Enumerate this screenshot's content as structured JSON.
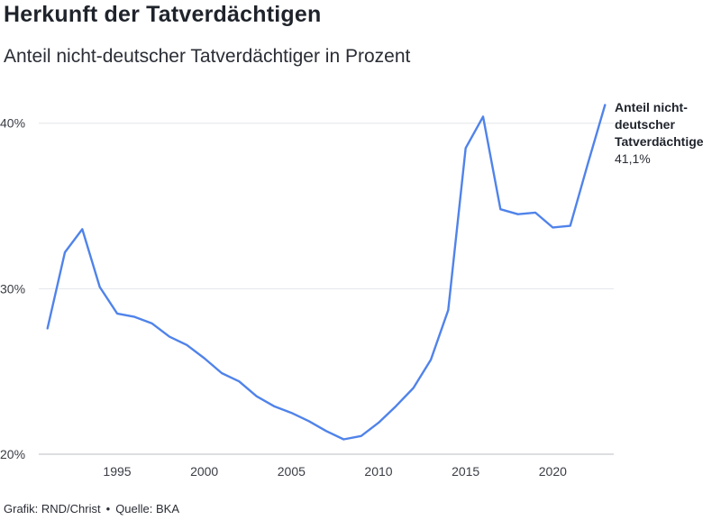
{
  "title": "Herkunft der Tatverdächtigen",
  "subtitle": "Anteil nicht-deutscher Tatverdächtiger in Prozent",
  "footer": {
    "credit": "Grafik: RND/Christ",
    "separator": "•",
    "source": "Quelle: BKA"
  },
  "chart_data": {
    "type": "line",
    "title": "Herkunft der Tatverdächtigen",
    "subtitle": "Anteil nicht-deutscher Tatverdächtiger in Prozent",
    "xlabel": "",
    "ylabel": "",
    "xlim": [
      1990.5,
      2023.5
    ],
    "ylim": [
      20,
      42
    ],
    "x_ticks": [
      1995,
      2000,
      2005,
      2010,
      2015,
      2020
    ],
    "x_tick_labels": [
      "1995",
      "2000",
      "2005",
      "2010",
      "2015",
      "2020"
    ],
    "y_ticks": [
      20,
      30,
      40
    ],
    "y_tick_labels": [
      "20%",
      "30%",
      "40%"
    ],
    "grid": "horizontal",
    "line_color": "#5083ea",
    "series": [
      {
        "name": "Anteil nicht-deutscher Tatverdächtige",
        "label_lines": [
          "Anteil nicht-",
          "deutscher",
          "Tatverdächtige"
        ],
        "last_value_label": "41,1%",
        "x": [
          1991,
          1992,
          1993,
          1994,
          1995,
          1996,
          1997,
          1998,
          1999,
          2000,
          2001,
          2002,
          2003,
          2004,
          2005,
          2006,
          2007,
          2008,
          2009,
          2010,
          2011,
          2012,
          2013,
          2014,
          2015,
          2016,
          2017,
          2018,
          2019,
          2020,
          2021,
          2022,
          2023
        ],
        "values": [
          27.6,
          32.2,
          33.6,
          30.1,
          28.5,
          28.3,
          27.9,
          27.1,
          26.6,
          25.8,
          24.9,
          24.4,
          23.5,
          22.9,
          22.5,
          22.0,
          21.4,
          20.9,
          21.1,
          21.9,
          22.9,
          24.0,
          25.7,
          28.7,
          38.5,
          40.4,
          34.8,
          34.5,
          34.6,
          33.7,
          33.8,
          37.5,
          41.1
        ]
      }
    ]
  }
}
